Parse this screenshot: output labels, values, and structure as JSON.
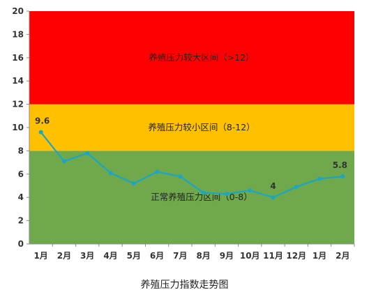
{
  "caption": "养殖压力指数走势图",
  "chart_data": {
    "type": "line",
    "title": "",
    "xlabel": "",
    "ylabel": "",
    "categories": [
      "1月",
      "2月",
      "3月",
      "4月",
      "5月",
      "6月",
      "7月",
      "8月",
      "9月",
      "10月",
      "11月",
      "12月",
      "1月",
      "2月"
    ],
    "values": [
      9.6,
      7.1,
      7.8,
      6.1,
      5.2,
      6.2,
      5.8,
      4.4,
      4.3,
      4.6,
      4.0,
      4.9,
      5.6,
      5.8
    ],
    "ylim": [
      0,
      20
    ],
    "yticks": [
      "0",
      "2",
      "4",
      "6",
      "8",
      "10",
      "12",
      "14",
      "16",
      "18",
      "20"
    ],
    "bands": [
      {
        "label": "正常养殖压力区间（0-8）",
        "from": 0,
        "to": 8,
        "color": "#6fa94b"
      },
      {
        "label": "养殖压力较小区间（8-12）",
        "from": 8,
        "to": 12,
        "color": "#ffc000"
      },
      {
        "label": "养殖压力较大区间（>12）",
        "from": 12,
        "to": 20,
        "color": "#ff0000"
      }
    ],
    "data_labels": [
      {
        "index": 0,
        "text": "9.6"
      },
      {
        "index": 10,
        "text": "4"
      },
      {
        "index": 13,
        "text": "5.8"
      }
    ],
    "line_color": "#1aa6c8",
    "grid": false
  }
}
